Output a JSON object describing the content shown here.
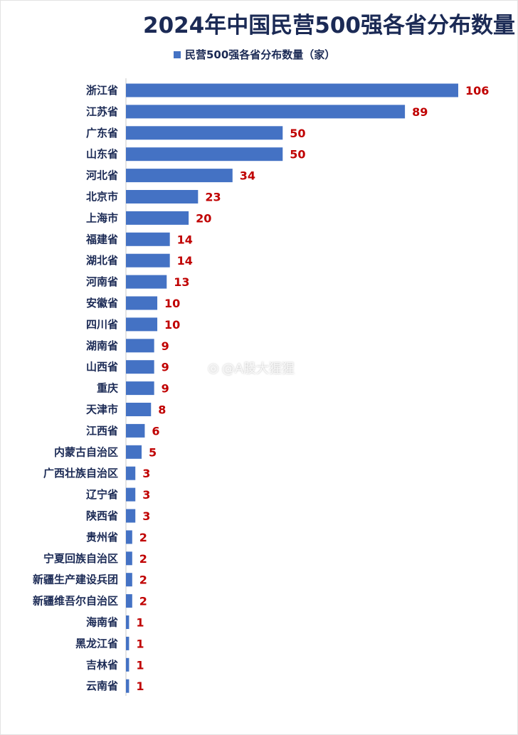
{
  "chart_data": {
    "type": "bar",
    "orientation": "horizontal",
    "title": "2024年中国民营500强各省分布数量",
    "legend_position": "top",
    "series": [
      {
        "name": "民营500强各省分布数量（家）",
        "color": "#4472c4",
        "values": [
          106,
          89,
          50,
          50,
          34,
          23,
          20,
          14,
          14,
          13,
          10,
          10,
          9,
          9,
          9,
          8,
          6,
          5,
          3,
          3,
          3,
          2,
          2,
          2,
          2,
          1,
          1,
          1,
          1
        ]
      }
    ],
    "categories": [
      "浙江省",
      "江苏省",
      "广东省",
      "山东省",
      "河北省",
      "北京市",
      "上海市",
      "福建省",
      "湖北省",
      "河南省",
      "安徽省",
      "四川省",
      "湖南省",
      "山西省",
      "重庆",
      "天津市",
      "江西省",
      "内蒙古自治区",
      "广西壮族自治区",
      "辽宁省",
      "陕西省",
      "贵州省",
      "宁夏回族自治区",
      "新疆生产建设兵团",
      "新疆维吾尔自治区",
      "海南省",
      "黑龙江省",
      "吉林省",
      "云南省"
    ],
    "xlim": [
      0,
      106
    ],
    "grid": false,
    "data_label_color": "#c00000"
  },
  "watermark": "@A股大猩猩"
}
